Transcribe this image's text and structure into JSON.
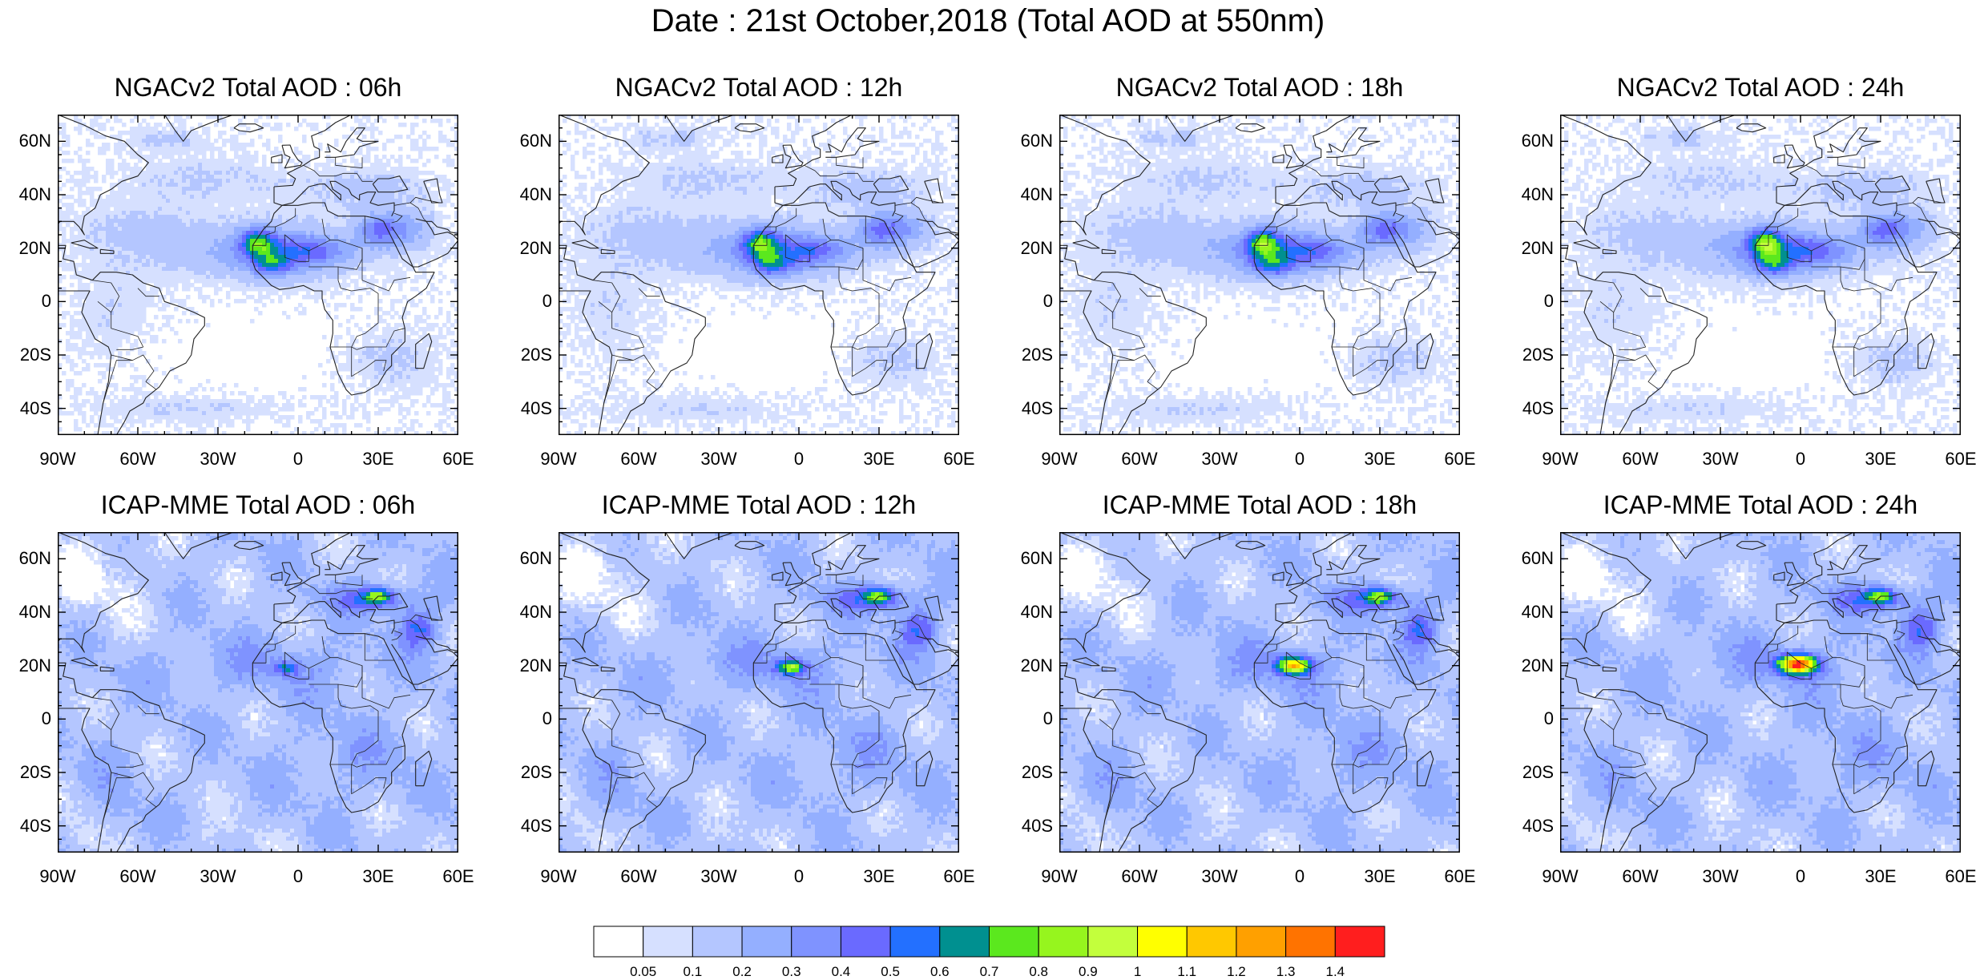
{
  "title": "Date : 21st October,2018 (Total AOD at 550nm)",
  "panels": [
    {
      "title": "NGACv2 Total AOD : 06h",
      "model": "ngac",
      "hour": 6
    },
    {
      "title": "NGACv2 Total AOD : 12h",
      "model": "ngac",
      "hour": 12
    },
    {
      "title": "NGACv2 Total AOD : 18h",
      "model": "ngac",
      "hour": 18
    },
    {
      "title": "NGACv2 Total AOD : 24h",
      "model": "ngac",
      "hour": 24
    },
    {
      "title": "ICAP-MME Total AOD : 06h",
      "model": "icap",
      "hour": 6
    },
    {
      "title": "ICAP-MME Total AOD : 12h",
      "model": "icap",
      "hour": 12
    },
    {
      "title": "ICAP-MME Total AOD : 18h",
      "model": "icap",
      "hour": 18
    },
    {
      "title": "ICAP-MME Total AOD : 24h",
      "model": "icap",
      "hour": 24
    }
  ],
  "map_extent": {
    "lon": [
      -90,
      60
    ],
    "lat": [
      -50,
      70
    ]
  },
  "lat_ticks": [
    {
      "value": 60,
      "label": "60N"
    },
    {
      "value": 40,
      "label": "40N"
    },
    {
      "value": 20,
      "label": "20N"
    },
    {
      "value": 0,
      "label": "0"
    },
    {
      "value": -20,
      "label": "20S"
    },
    {
      "value": -40,
      "label": "40S"
    }
  ],
  "lon_ticks": [
    {
      "value": -90,
      "label": "90W"
    },
    {
      "value": -60,
      "label": "60W"
    },
    {
      "value": -30,
      "label": "30W"
    },
    {
      "value": 0,
      "label": "0"
    },
    {
      "value": 30,
      "label": "30E"
    },
    {
      "value": 60,
      "label": "60E"
    }
  ],
  "colorbar": {
    "colors": [
      "#ffffff",
      "#d6e0ff",
      "#b4c6ff",
      "#94afff",
      "#7f93ff",
      "#6a6aff",
      "#2370ff",
      "#009090",
      "#5be81e",
      "#96f51e",
      "#c3ff3c",
      "#ffff00",
      "#ffc800",
      "#ffa000",
      "#ff7300",
      "#ff1e1e"
    ],
    "labels": [
      "0.05",
      "0.1",
      "0.2",
      "0.3",
      "0.4",
      "0.5",
      "0.6",
      "0.7",
      "0.8",
      "0.9",
      "1",
      "1.1",
      "1.2",
      "1.3",
      "1.4"
    ]
  }
}
